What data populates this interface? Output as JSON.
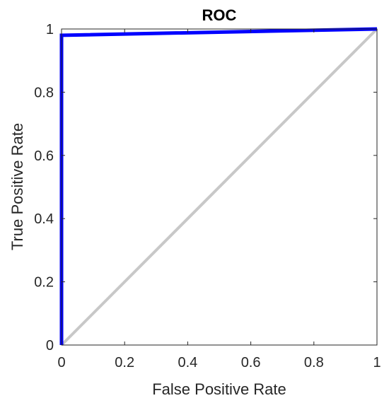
{
  "chart_data": {
    "type": "line",
    "title": "ROC",
    "xlabel": "False Positive Rate",
    "ylabel": "True Positive Rate",
    "xlim": [
      0,
      1
    ],
    "ylim": [
      0,
      1
    ],
    "xticks": [
      0,
      0.2,
      0.4,
      0.6,
      0.8,
      1
    ],
    "xtick_labels": [
      "0",
      "0.2",
      "0.4",
      "0.6",
      "0.8",
      "1"
    ],
    "yticks": [
      0,
      0.2,
      0.4,
      0.6,
      0.8,
      1
    ],
    "ytick_labels": [
      "0",
      "0.2",
      "0.4",
      "0.6",
      "0.8",
      "1"
    ],
    "grid": false,
    "series": [
      {
        "color": "#0000ff",
        "x": [
          0,
          0,
          1
        ],
        "y": [
          0,
          0.98,
          1
        ]
      },
      {
        "color": "#c8c8c8",
        "x": [
          0,
          1
        ],
        "y": [
          0,
          1
        ]
      }
    ]
  }
}
